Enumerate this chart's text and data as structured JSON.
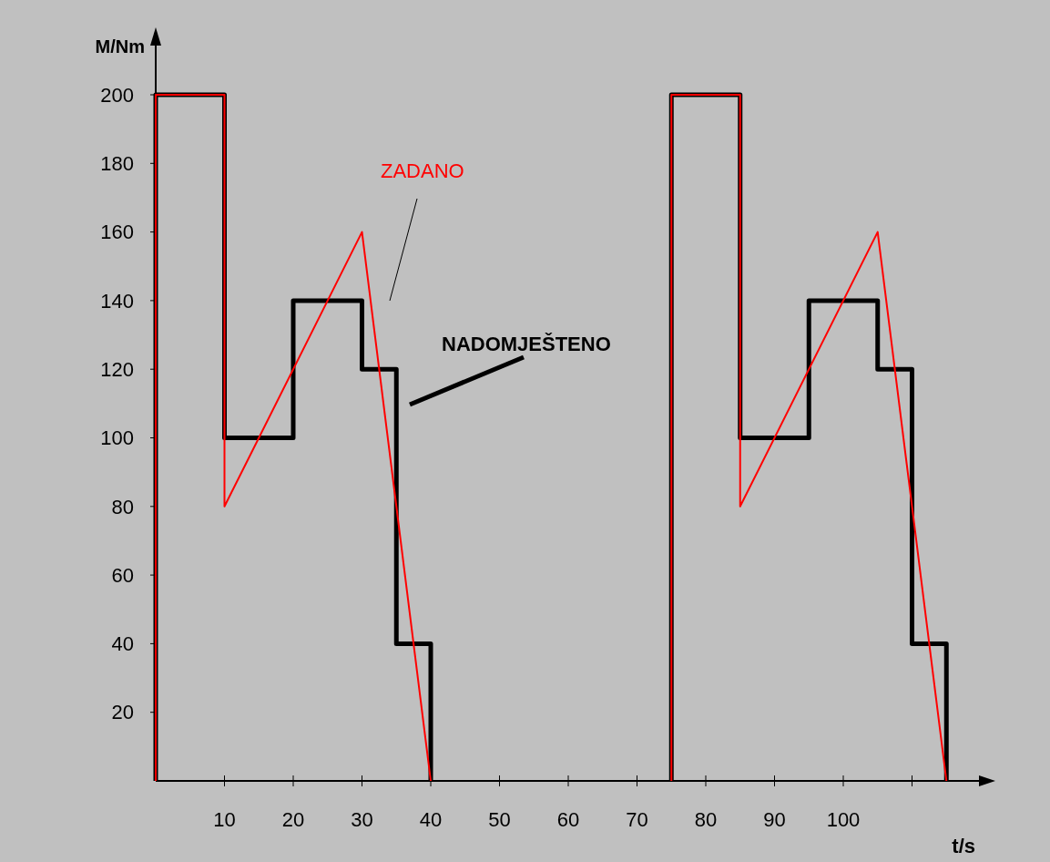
{
  "chart_data": {
    "type": "line",
    "xlabel": "t/s",
    "ylabel": "M/Nm",
    "xlim": [
      0,
      120
    ],
    "ylim": [
      0,
      217
    ],
    "xticks": [
      10,
      20,
      30,
      40,
      50,
      60,
      70,
      80,
      90,
      100,
      {
        "value": 110,
        "label": null
      }
    ],
    "yticks": [
      20,
      40,
      60,
      80,
      100,
      120,
      140,
      160,
      180,
      200
    ],
    "series": [
      {
        "name": "NADOMJEŠTENO",
        "color": "#000000",
        "x": [
          0,
          0,
          10,
          10,
          20,
          20,
          30,
          30,
          35,
          35,
          40,
          40,
          null,
          75,
          75,
          85,
          85,
          95,
          95,
          105,
          105,
          110,
          110,
          115,
          115
        ],
        "values": [
          0,
          200,
          200,
          100,
          100,
          140,
          140,
          120,
          120,
          40,
          40,
          0,
          null,
          0,
          200,
          200,
          100,
          100,
          140,
          140,
          120,
          120,
          40,
          40,
          0
        ]
      },
      {
        "name": "ZADANO",
        "color": "#ff0000",
        "x": [
          0,
          0,
          10,
          10,
          30,
          40,
          null,
          75,
          75,
          85,
          85,
          105,
          115
        ],
        "values": [
          0,
          200,
          200,
          80,
          160,
          0,
          null,
          0,
          200,
          200,
          80,
          160,
          0
        ]
      }
    ],
    "grid": false,
    "line_style": "solid"
  }
}
